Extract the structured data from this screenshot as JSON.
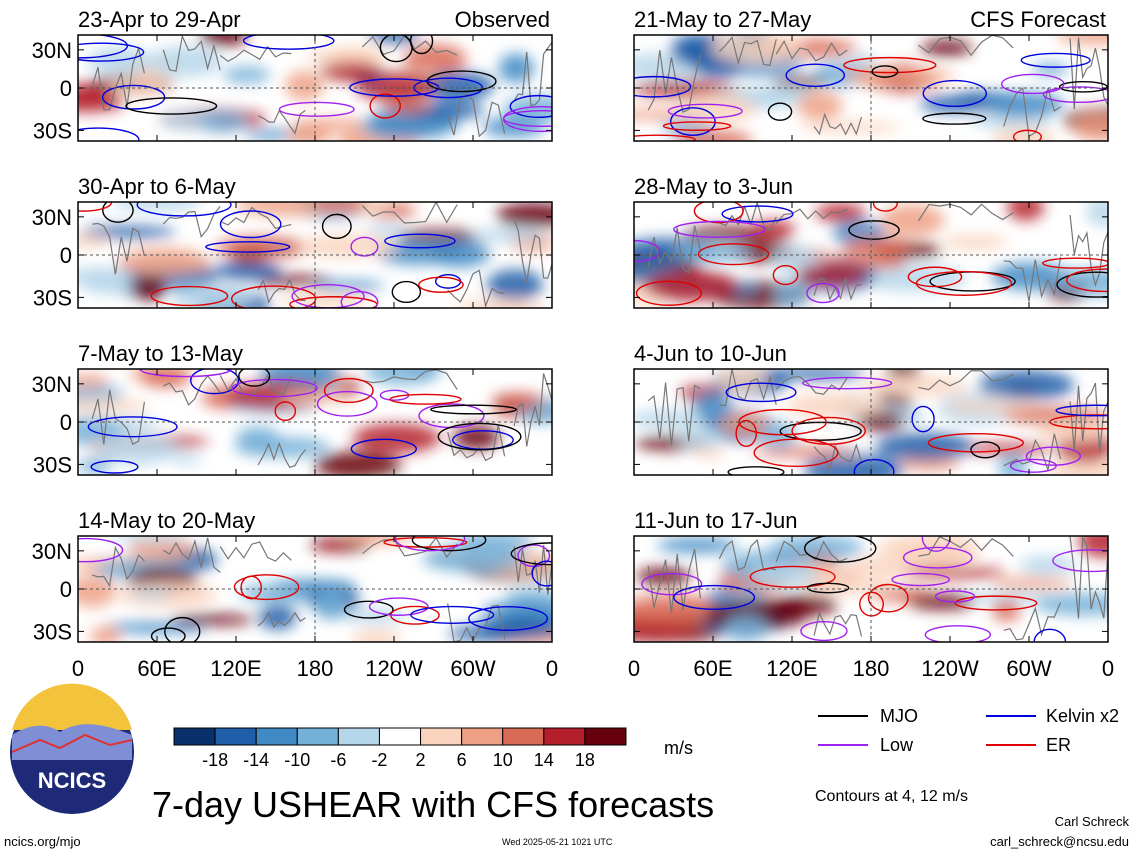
{
  "chart_data": {
    "type": "heatmap",
    "title": "7-day USHEAR with CFS forecasts",
    "variable": "USHEAR",
    "units": "m/s",
    "colorbar": {
      "tick_labels": [
        "-18",
        "-14",
        "-10",
        "-6",
        "-2",
        "2",
        "6",
        "10",
        "14",
        "18"
      ],
      "colors": [
        "#08306b",
        "#1f5ea8",
        "#3f8ac4",
        "#75b0d8",
        "#b6d6ea",
        "#ffffff",
        "#f9d3bd",
        "#eea084",
        "#d96a55",
        "#b41f2b",
        "#67000d"
      ]
    },
    "x_tick_labels": [
      "0",
      "60E",
      "120E",
      "180",
      "120W",
      "60W",
      "0"
    ],
    "y_tick_labels": [
      "30N",
      "0",
      "30S"
    ],
    "columns": [
      {
        "label": "Observed",
        "panels": [
          {
            "period": "23-Apr to 29-Apr"
          },
          {
            "period": "30-Apr to 6-May"
          },
          {
            "period": "7-May to 13-May"
          },
          {
            "period": "14-May to 20-May"
          }
        ]
      },
      {
        "label": "CFS Forecast",
        "panels": [
          {
            "period": "21-May to 27-May"
          },
          {
            "period": "28-May to 3-Jun"
          },
          {
            "period": "4-Jun to 10-Jun"
          },
          {
            "period": "11-Jun to 17-Jun"
          }
        ]
      }
    ],
    "contour_legend": [
      {
        "label": "MJO",
        "color": "#000000"
      },
      {
        "label": "Kelvin x2",
        "color": "#0000dd"
      },
      {
        "label": "Low",
        "color": "#a020f0"
      },
      {
        "label": "ER",
        "color": "#e00000"
      }
    ],
    "contour_note": "Contours at 4, 12 m/s"
  },
  "footer": {
    "logo_text": "NCICS",
    "url": "ncics.org/mjo",
    "timestamp": "Wed 2025-05-21 1021 UTC",
    "author": "Carl Schreck",
    "email": "carl_schreck@ncsu.edu"
  }
}
